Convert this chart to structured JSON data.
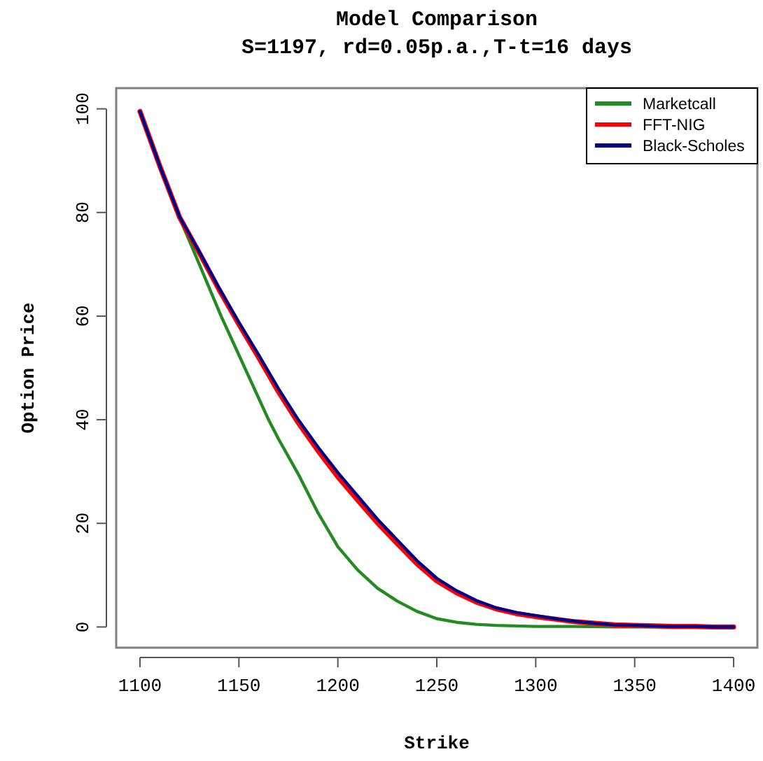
{
  "chart_data": {
    "type": "line",
    "title": "Model Comparison",
    "subtitle": "S=1197, rd=0.05p.a.,T-t=16 days",
    "xlabel": "Strike",
    "ylabel": "Option Price",
    "xlim": [
      1088,
      1412
    ],
    "ylim": [
      -4,
      104
    ],
    "xticks": [
      1100,
      1150,
      1200,
      1250,
      1300,
      1350,
      1400
    ],
    "yticks": [
      0,
      20,
      40,
      60,
      80,
      100
    ],
    "grid": false,
    "legend": "top right",
    "line_style": "solid",
    "marker": "none",
    "series": [
      {
        "name": "Marketcall",
        "color": "#228b22",
        "x": [
          1100,
          1110,
          1120,
          1130,
          1141,
          1150,
          1165,
          1170,
          1180,
          1190,
          1200,
          1210,
          1220,
          1230,
          1240,
          1250,
          1260,
          1270,
          1280,
          1290,
          1300,
          1320,
          1340,
          1360,
          1380,
          1400
        ],
        "values": [
          99.5,
          89,
          79,
          70,
          60,
          52.5,
          40,
          36.3,
          29.5,
          22,
          15.5,
          11,
          7.5,
          5,
          3,
          1.6,
          0.9,
          0.5,
          0.3,
          0.2,
          0.1,
          0.1,
          0,
          0,
          0,
          0
        ]
      },
      {
        "name": "FFT-NIG",
        "color": "#ff0000",
        "x": [
          1100,
          1110,
          1120,
          1130,
          1140,
          1150,
          1160,
          1170,
          1180,
          1190,
          1200,
          1210,
          1220,
          1230,
          1240,
          1250,
          1260,
          1270,
          1280,
          1290,
          1300,
          1310,
          1320,
          1330,
          1340,
          1350,
          1360,
          1370,
          1380,
          1390,
          1400
        ],
        "values": [
          99.5,
          89,
          79.1,
          72.2,
          65.1,
          58.4,
          52,
          45.4,
          39.4,
          34,
          29,
          24.5,
          20.1,
          16.1,
          12.2,
          8.9,
          6.6,
          4.8,
          3.5,
          2.6,
          2,
          1.5,
          1,
          0.7,
          0.4,
          0.3,
          0.2,
          0.1,
          0.1,
          0,
          0
        ]
      },
      {
        "name": "Black-Scholes",
        "color": "#00008b",
        "x": [
          1100,
          1110,
          1120,
          1130,
          1140,
          1150,
          1160,
          1170,
          1180,
          1190,
          1200,
          1210,
          1220,
          1230,
          1240,
          1250,
          1260,
          1270,
          1280,
          1290,
          1300,
          1310,
          1320,
          1330,
          1340,
          1350,
          1360,
          1370,
          1380,
          1390,
          1400
        ],
        "values": [
          99.5,
          89,
          79.2,
          72.4,
          65.4,
          58.8,
          52.5,
          46,
          40,
          34.7,
          29.8,
          25.3,
          20.8,
          16.8,
          12.8,
          9.4,
          7,
          5.1,
          3.7,
          2.8,
          2.2,
          1.6,
          1.1,
          0.7,
          0.4,
          0.3,
          0.2,
          0.1,
          0.1,
          0,
          0
        ]
      }
    ]
  }
}
